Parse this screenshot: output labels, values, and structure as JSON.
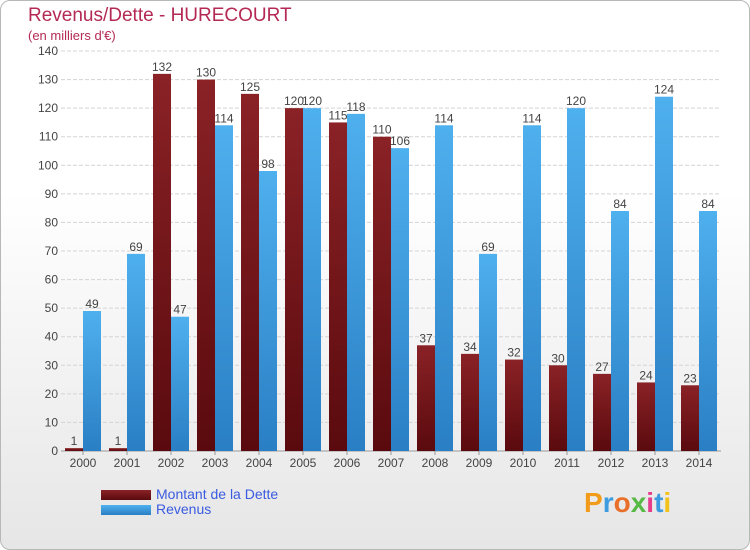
{
  "title": "Revenus/Dette - HURECOURT",
  "subtitle": "(en milliers d'€)",
  "legend": {
    "debt": "Montant de la Dette",
    "revenue": "Revenus"
  },
  "logo": "Proxiti",
  "colors": {
    "debt": "#7a1519",
    "revenue": "#3d9be0",
    "title": "#b42a54",
    "legend_text": "#3a5be0"
  },
  "chart_data": {
    "type": "bar",
    "categories": [
      "2000",
      "2001",
      "2002",
      "2003",
      "2004",
      "2005",
      "2006",
      "2007",
      "2008",
      "2009",
      "2010",
      "2011",
      "2012",
      "2013",
      "2014"
    ],
    "series": [
      {
        "name": "Montant de la Dette",
        "values": [
          1,
          1,
          132,
          130,
          125,
          120,
          115,
          110,
          37,
          34,
          32,
          30,
          27,
          24,
          23
        ]
      },
      {
        "name": "Revenus",
        "values": [
          49,
          69,
          47,
          114,
          98,
          120,
          118,
          106,
          114,
          69,
          114,
          120,
          84,
          124,
          84
        ]
      }
    ],
    "title": "Revenus/Dette - HURECOURT",
    "subtitle": "(en milliers d'€)",
    "xlabel": "",
    "ylabel": "",
    "ylim": [
      0,
      140
    ],
    "yticks": [
      0,
      10,
      20,
      30,
      40,
      50,
      60,
      70,
      80,
      90,
      100,
      110,
      120,
      130,
      140
    ],
    "grid": true,
    "legend_position": "bottom-left"
  }
}
